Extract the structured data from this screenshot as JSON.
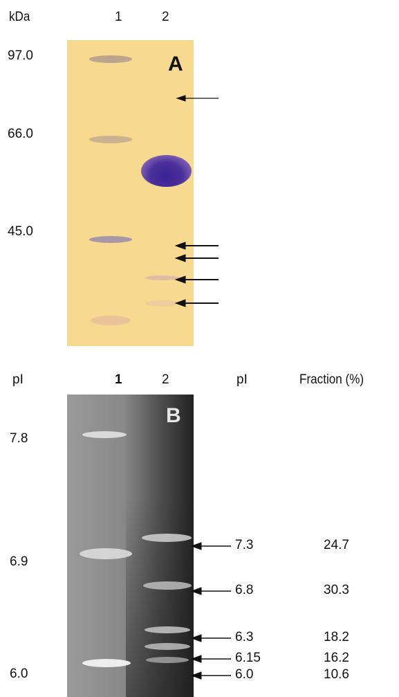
{
  "panel_a": {
    "letter": "A",
    "unit_label": "kDa",
    "lane_labels": [
      "1",
      "2"
    ],
    "marker_sizes": [
      "97.0",
      "66.0",
      "45.0"
    ]
  },
  "panel_b": {
    "letter": "B",
    "left_header": "pI",
    "lane_labels": [
      "1",
      "2"
    ],
    "pi_header": "pI",
    "fraction_header": "Fraction (%)",
    "standards": [
      "7.8",
      "6.9",
      "6.0"
    ],
    "isoforms": [
      {
        "pi": "7.3",
        "fraction": "24.7"
      },
      {
        "pi": "6.8",
        "fraction": "30.3"
      },
      {
        "pi": "6.3",
        "fraction": "18.2"
      },
      {
        "pi": "6.15",
        "fraction": "16.2"
      },
      {
        "pi": "6.0",
        "fraction": "10.6"
      }
    ]
  },
  "colors": {
    "gel_a_background": "#f7d98f",
    "main_band": "#4b2f9a",
    "gel_b_background": "#8a8a8a"
  }
}
